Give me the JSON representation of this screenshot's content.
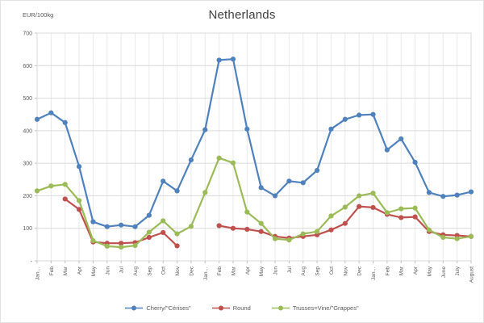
{
  "chart_data": {
    "type": "line",
    "title": "Netherlands",
    "ylabel": "EUR/100kg",
    "xlabel": "",
    "grid": true,
    "legend_position": "bottom",
    "ylim": [
      0,
      700
    ],
    "ytick_step": 100,
    "ytick_labels_top_to_bottom": [
      "700",
      "600",
      "500",
      "400",
      "300",
      "200",
      "100",
      "-"
    ],
    "categories": [
      "Jan…",
      "Feb",
      "Mar",
      "Apr",
      "May",
      "Jun",
      "Jul",
      "Aug",
      "Sep",
      "Oct",
      "Nov",
      "Dec",
      "Jan…",
      "Feb",
      "Mar",
      "Apr",
      "May",
      "Jun",
      "Jul",
      "Aug",
      "Sep",
      "Oct",
      "Nov",
      "Dec",
      "Jan…",
      "Feb",
      "Mar",
      "Apr",
      "May",
      "June",
      "July",
      "August"
    ],
    "series": [
      {
        "name": "Cherry/\"Cérises\"",
        "color": "#4F81BD",
        "values": [
          435,
          455,
          425,
          290,
          120,
          105,
          110,
          105,
          140,
          245,
          215,
          310,
          403,
          617,
          620,
          405,
          225,
          200,
          245,
          240,
          278,
          405,
          435,
          448,
          450,
          341,
          375,
          303,
          210,
          198,
          202,
          212
        ]
      },
      {
        "name": "Round",
        "color": "#C0504D",
        "values": [
          null,
          null,
          190,
          158,
          58,
          54,
          54,
          56,
          72,
          87,
          46,
          null,
          null,
          108,
          100,
          97,
          90,
          75,
          70,
          75,
          80,
          95,
          115,
          167,
          164,
          143,
          133,
          135,
          90,
          80,
          78,
          75
        ]
      },
      {
        "name": "Trusses=Vine/\"Grappes\"",
        "color": "#9BBB59",
        "values": [
          215,
          230,
          235,
          185,
          62,
          45,
          42,
          47,
          88,
          123,
          83,
          106,
          210,
          316,
          301,
          150,
          115,
          68,
          64,
          83,
          90,
          138,
          165,
          200,
          208,
          148,
          160,
          162,
          95,
          72,
          68,
          75
        ]
      }
    ]
  }
}
